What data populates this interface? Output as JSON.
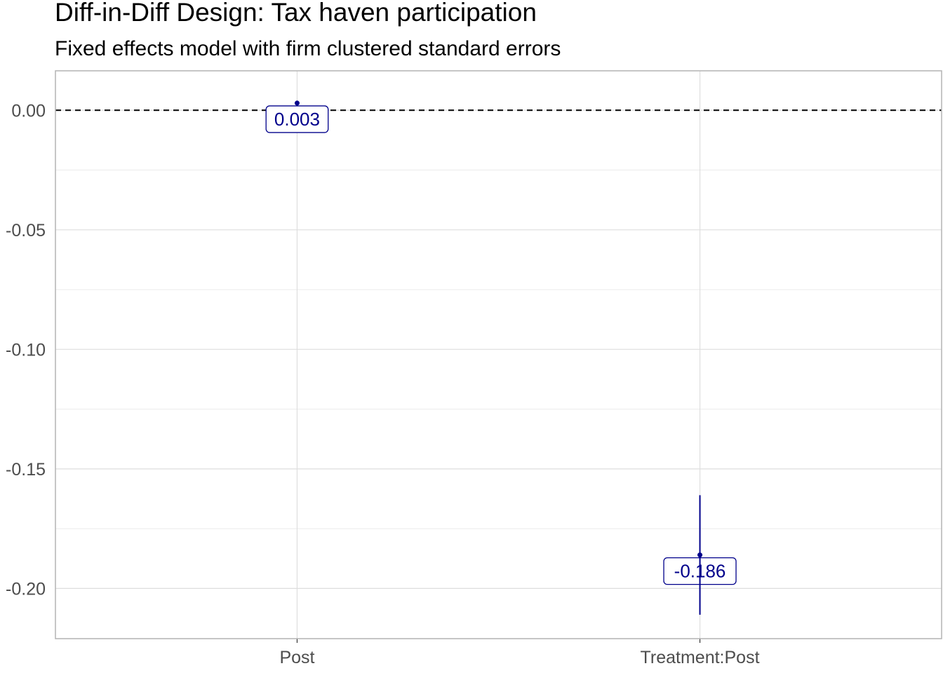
{
  "chart_data": {
    "type": "scatter",
    "title": "Diff-in-Diff Design: Tax haven participation",
    "subtitle": "Fixed effects model with firm clustered standard errors",
    "xlabel": "",
    "ylabel": "",
    "categories": [
      "Post",
      "Treatment:Post"
    ],
    "estimates": [
      0.003,
      -0.186
    ],
    "ci_low": [
      0.002,
      -0.211
    ],
    "ci_high": [
      0.004,
      -0.161
    ],
    "data_labels": [
      "0.003",
      "-0.186"
    ],
    "reference_line": 0,
    "ylim": [
      -0.221,
      0.0165
    ],
    "yticks": [
      0.0,
      -0.05,
      -0.1,
      -0.15,
      -0.2
    ],
    "ytick_labels": [
      "0.00",
      "-0.05",
      "-0.10",
      "-0.15",
      "-0.20"
    ],
    "grid": true,
    "legend": "none",
    "colors": {
      "series": "#00008b",
      "grid": "#dedede",
      "border": "#b3b3b3"
    }
  }
}
